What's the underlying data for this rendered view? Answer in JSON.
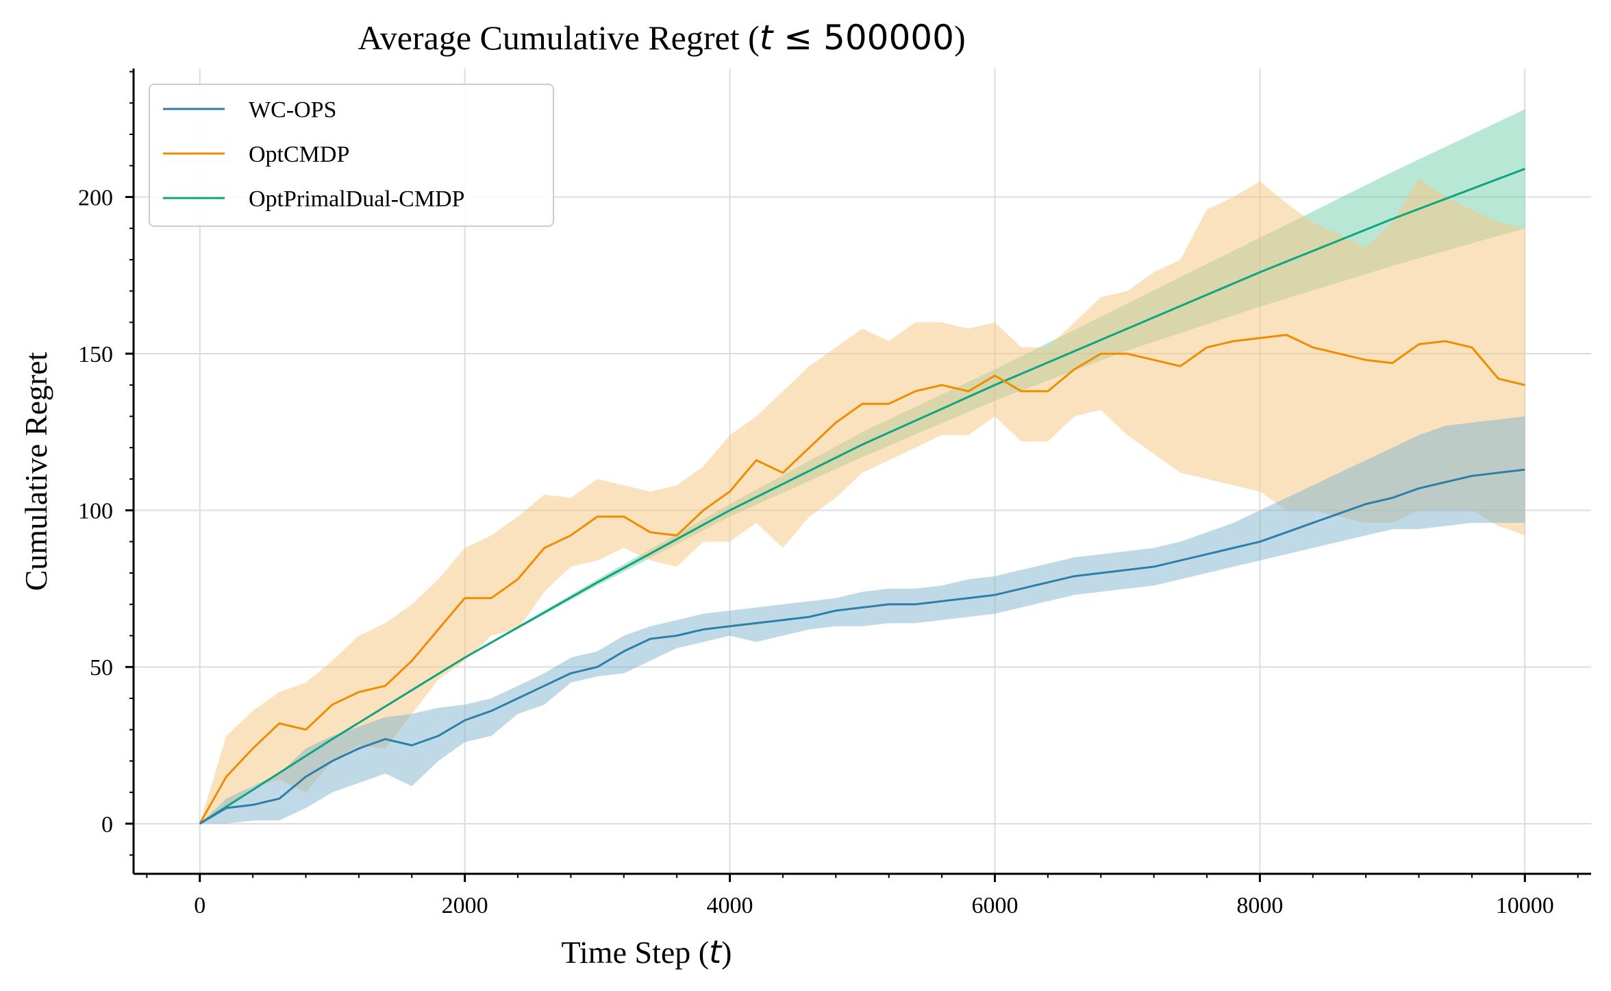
{
  "chart_data": {
    "type": "line",
    "title": "Average Cumulative Regret (",
    "title_math_var": "t",
    "title_math_rel": " ≤ 500000",
    "title_close": ")",
    "xlabel": "Time Step (",
    "xlabel_math": "t",
    "xlabel_close": ")",
    "ylabel": "Cumulative Regret",
    "xlim": [
      -500,
      10500
    ],
    "ylim": [
      -16,
      241
    ],
    "xticks": [
      0,
      2000,
      4000,
      6000,
      8000,
      10000
    ],
    "xtick_labels": [
      "0",
      "2000",
      "4000",
      "6000",
      "8000",
      "10000"
    ],
    "yticks": [
      0,
      50,
      100,
      150,
      200
    ],
    "ytick_labels": [
      "0",
      "50",
      "100",
      "150",
      "200"
    ],
    "grid": true,
    "legend_position": "top-left",
    "series": [
      {
        "name": "WC-OPS",
        "color": "#2e7fa8",
        "band_color": "#7fb4cf",
        "x": [
          0,
          200,
          400,
          600,
          800,
          1000,
          1200,
          1400,
          1600,
          1800,
          2000,
          2200,
          2400,
          2600,
          2800,
          3000,
          3200,
          3400,
          3600,
          3800,
          4000,
          4200,
          4400,
          4600,
          4800,
          5000,
          5200,
          5400,
          5600,
          5800,
          6000,
          6200,
          6400,
          6600,
          6800,
          7000,
          7200,
          7400,
          7600,
          7800,
          8000,
          8200,
          8400,
          8600,
          8800,
          9000,
          9200,
          9400,
          9600,
          9800,
          10000
        ],
        "y": [
          0,
          5,
          6,
          8,
          15,
          20,
          24,
          27,
          25,
          28,
          33,
          36,
          40,
          44,
          48,
          50,
          55,
          59,
          60,
          62,
          63,
          64,
          65,
          66,
          68,
          69,
          70,
          70,
          71,
          72,
          73,
          75,
          77,
          79,
          80,
          81,
          82,
          84,
          86,
          88,
          90,
          93,
          96,
          99,
          102,
          104,
          107,
          109,
          111,
          112,
          113
        ],
        "lower": [
          0,
          0,
          1,
          1,
          5,
          10,
          13,
          16,
          12,
          20,
          26,
          28,
          35,
          38,
          45,
          47,
          48,
          52,
          56,
          58,
          60,
          58,
          60,
          62,
          63,
          63,
          64,
          64,
          65,
          66,
          67,
          69,
          71,
          73,
          74,
          75,
          76,
          78,
          80,
          82,
          84,
          86,
          88,
          90,
          92,
          94,
          94,
          95,
          96,
          96,
          96
        ],
        "upper": [
          0,
          8,
          12,
          16,
          24,
          28,
          31,
          34,
          35,
          37,
          38,
          40,
          44,
          48,
          53,
          55,
          60,
          63,
          65,
          67,
          68,
          69,
          70,
          71,
          72,
          74,
          75,
          75,
          76,
          78,
          79,
          81,
          83,
          85,
          86,
          87,
          88,
          90,
          93,
          96,
          100,
          104,
          108,
          112,
          116,
          120,
          124,
          127,
          128,
          129,
          130
        ]
      },
      {
        "name": "OptCMDP",
        "color": "#f08c00",
        "band_color": "#f7c57e",
        "x": [
          0,
          200,
          400,
          600,
          800,
          1000,
          1200,
          1400,
          1600,
          1800,
          2000,
          2200,
          2400,
          2600,
          2800,
          3000,
          3200,
          3400,
          3600,
          3800,
          4000,
          4200,
          4400,
          4600,
          4800,
          5000,
          5200,
          5400,
          5600,
          5800,
          6000,
          6200,
          6400,
          6600,
          6800,
          7000,
          7200,
          7400,
          7600,
          7800,
          8000,
          8200,
          8400,
          8600,
          8800,
          9000,
          9200,
          9400,
          9600,
          9800,
          10000
        ],
        "y": [
          0,
          15,
          24,
          32,
          30,
          38,
          42,
          44,
          52,
          62,
          72,
          72,
          78,
          88,
          92,
          98,
          98,
          93,
          92,
          100,
          106,
          116,
          112,
          120,
          128,
          134,
          134,
          138,
          140,
          138,
          143,
          138,
          138,
          145,
          150,
          150,
          148,
          146,
          152,
          154,
          155,
          156,
          152,
          150,
          148,
          147,
          153,
          154,
          152,
          142,
          140
        ],
        "lower": [
          0,
          5,
          12,
          14,
          10,
          20,
          25,
          24,
          35,
          46,
          52,
          60,
          62,
          74,
          82,
          84,
          88,
          84,
          82,
          90,
          90,
          96,
          88,
          98,
          104,
          112,
          116,
          120,
          124,
          124,
          130,
          122,
          122,
          130,
          132,
          124,
          118,
          112,
          110,
          108,
          106,
          100,
          100,
          98,
          96,
          96,
          100,
          100,
          100,
          95,
          92
        ],
        "upper": [
          0,
          28,
          36,
          42,
          45,
          52,
          60,
          64,
          70,
          78,
          88,
          92,
          98,
          105,
          104,
          110,
          108,
          106,
          108,
          114,
          124,
          130,
          138,
          146,
          152,
          158,
          154,
          160,
          160,
          158,
          160,
          152,
          152,
          160,
          168,
          170,
          176,
          180,
          196,
          200,
          205,
          198,
          192,
          188,
          184,
          192,
          206,
          200,
          196,
          192,
          190
        ]
      },
      {
        "name": "OptPrimalDual-CMDP",
        "color": "#0fa37f",
        "band_color": "#71cfae",
        "x": [
          0,
          1000,
          2000,
          3000,
          4000,
          5000,
          6000,
          7000,
          8000,
          9000,
          10000
        ],
        "y": [
          0,
          27,
          53,
          77,
          100,
          121,
          140,
          158,
          176,
          193,
          209
        ],
        "lower": [
          0,
          27,
          53,
          76,
          98,
          117,
          135,
          151,
          165,
          178,
          190
        ],
        "upper": [
          0,
          27,
          53,
          78,
          102,
          125,
          145,
          166,
          187,
          208,
          228
        ]
      }
    ]
  }
}
